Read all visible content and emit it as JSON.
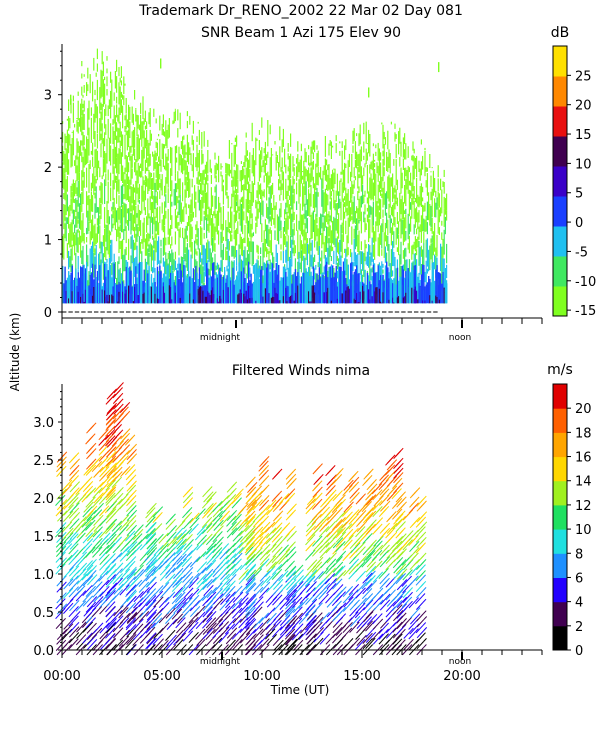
{
  "header": {
    "line1": "Trademark Dr_RENO_2002  22 Mar 02 Day 081",
    "line2": "SNR Beam 1 Azi 175 Elev 90"
  },
  "shared": {
    "ylabel": "Altitude (km)",
    "xlabel": "Time (UT)",
    "midnight_label": "midnight",
    "noon_label": "noon"
  },
  "chart_data": [
    {
      "type": "heatmap",
      "title": "SNR Beam 1 Azi 175 Elev 90",
      "ylabel": "Altitude (km)",
      "xlim": [
        0,
        24
      ],
      "ylim": [
        0,
        3.7
      ],
      "y_ticks": [
        0,
        1,
        2,
        3
      ],
      "y_tick_labels": [
        "0",
        "1",
        "2",
        "3"
      ],
      "colorbar": {
        "unit": "dB",
        "ticks": [
          -15,
          -10,
          -5,
          0,
          5,
          10,
          15,
          20,
          25
        ],
        "tick_labels": [
          "-15",
          "-10",
          "-5",
          "0",
          "5",
          "10",
          "15",
          "20",
          "25"
        ],
        "range": [
          -16,
          30
        ],
        "colors": [
          "#80ff20",
          "#40e860",
          "#20c0f0",
          "#1a40ff",
          "#3a00c8",
          "#400050",
          "#e81010",
          "#ff8800",
          "#ffe000"
        ]
      },
      "data_extent_hours": [
        0,
        19.2
      ],
      "profile": [
        {
          "t": 0.0,
          "top": 2.6
        },
        {
          "t": 1.0,
          "top": 3.2
        },
        {
          "t": 2.0,
          "top": 3.4
        },
        {
          "t": 3.0,
          "top": 3.2
        },
        {
          "t": 4.0,
          "top": 2.8
        },
        {
          "t": 5.0,
          "top": 2.5
        },
        {
          "t": 6.0,
          "top": 2.6
        },
        {
          "t": 7.0,
          "top": 2.4
        },
        {
          "t": 8.0,
          "top": 2.1
        },
        {
          "t": 9.0,
          "top": 2.3
        },
        {
          "t": 10.0,
          "top": 2.5
        },
        {
          "t": 11.0,
          "top": 2.4
        },
        {
          "t": 12.0,
          "top": 2.2
        },
        {
          "t": 13.0,
          "top": 2.3
        },
        {
          "t": 14.0,
          "top": 2.2
        },
        {
          "t": 15.0,
          "top": 2.4
        },
        {
          "t": 16.0,
          "top": 2.5
        },
        {
          "t": 17.0,
          "top": 2.3
        },
        {
          "t": 18.0,
          "top": 2.2
        },
        {
          "t": 19.0,
          "top": 1.8
        }
      ]
    },
    {
      "type": "scatter",
      "title": "Filtered Winds nima",
      "xlabel": "Time (UT)",
      "ylabel": "Altitude (km)",
      "xlim": [
        0,
        24
      ],
      "ylim": [
        0,
        3.5
      ],
      "x_ticks": [
        0,
        5,
        10,
        15,
        20
      ],
      "x_tick_labels": [
        "00:00",
        "05:00",
        "10:00",
        "15:00",
        "20:00"
      ],
      "y_ticks": [
        0,
        0.5,
        1.0,
        1.5,
        2.0,
        2.5,
        3.0
      ],
      "y_tick_labels": [
        "0.0",
        "0.5",
        "1.0",
        "1.5",
        "2.0",
        "2.5",
        "3.0"
      ],
      "colorbar": {
        "unit": "m/s",
        "ticks": [
          0,
          2,
          4,
          6,
          8,
          10,
          12,
          14,
          16,
          18,
          20
        ],
        "tick_labels": [
          "0",
          "2",
          "4",
          "6",
          "8",
          "10",
          "12",
          "14",
          "16",
          "18",
          "20"
        ],
        "range": [
          0,
          22
        ],
        "colors": [
          "#000000",
          "#400050",
          "#2200ff",
          "#1e90ff",
          "#20e0e0",
          "#20e060",
          "#a0f020",
          "#ffd700",
          "#ffa500",
          "#ff6000",
          "#e00000"
        ]
      },
      "segments": [
        {
          "t0": 0.0,
          "t1": 1.5,
          "top": 2.7
        },
        {
          "t0": 1.5,
          "t1": 2.5,
          "top": 3.2
        },
        {
          "t0": 2.5,
          "t1": 3.5,
          "top": 3.4
        },
        {
          "t0": 3.5,
          "t1": 4.5,
          "top": 1.8
        },
        {
          "t0": 4.5,
          "t1": 6.0,
          "top": 1.9
        },
        {
          "t0": 6.0,
          "t1": 7.5,
          "top": 2.1
        },
        {
          "t0": 7.5,
          "t1": 9.5,
          "top": 2.2
        },
        {
          "t0": 9.5,
          "t1": 11.5,
          "top": 2.6
        },
        {
          "t0": 11.5,
          "t1": 12.5,
          "top": 1.2
        },
        {
          "t0": 12.5,
          "t1": 14.0,
          "top": 2.5
        },
        {
          "t0": 14.0,
          "t1": 15.5,
          "top": 2.3
        },
        {
          "t0": 15.5,
          "t1": 17.0,
          "top": 2.6
        },
        {
          "t0": 17.0,
          "t1": 18.3,
          "top": 2.3
        }
      ]
    }
  ]
}
